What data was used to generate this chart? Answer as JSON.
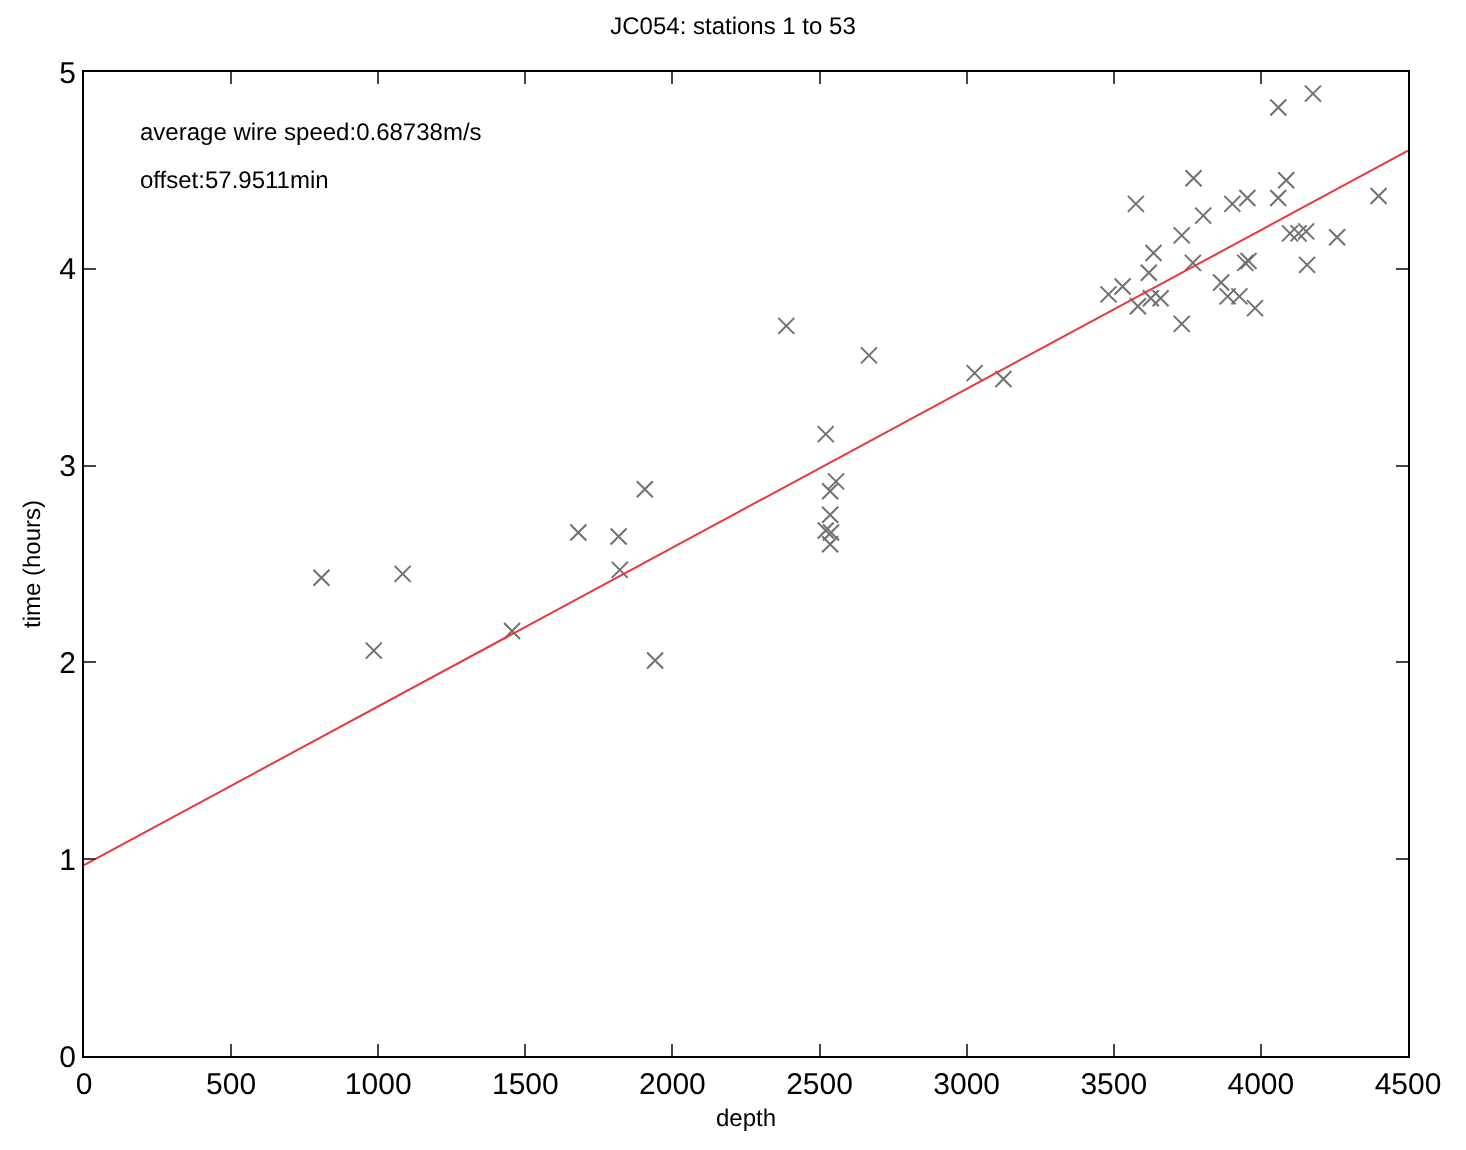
{
  "chart_data": {
    "type": "scatter",
    "title": "JC054: stations 1 to 53",
    "xlabel": "depth",
    "ylabel": "time (hours)",
    "xlim": [
      0,
      4500
    ],
    "ylim": [
      0,
      5
    ],
    "xticks": [
      0,
      500,
      1000,
      1500,
      2000,
      2500,
      3000,
      3500,
      4000,
      4500
    ],
    "yticks": [
      0,
      1,
      2,
      3,
      4,
      5
    ],
    "legend": false,
    "annotations": [
      "average wire speed:0.68738m/s",
      "offset:57.9511min"
    ],
    "series": [
      {
        "marker": "cross",
        "color": "#707070",
        "x": [
          807,
          985,
          1083,
          1455,
          1680,
          1817,
          1821,
          1906,
          1941,
          2387,
          2521,
          2556,
          2536,
          2536,
          2521,
          2539,
          2536,
          2668,
          3027,
          3125,
          3482,
          3530,
          3575,
          3582,
          3619,
          3635,
          3626,
          3659,
          3731,
          3731,
          3769,
          3771,
          3804,
          3865,
          3887,
          3903,
          3927,
          3954,
          3947,
          3958,
          3980,
          4059,
          4059,
          4086,
          4099,
          4128,
          4154,
          4157,
          4177,
          4259,
          4400
        ],
        "values": [
          2.43,
          2.06,
          2.45,
          2.16,
          2.66,
          2.64,
          2.47,
          2.88,
          2.01,
          3.71,
          3.16,
          2.92,
          2.87,
          2.75,
          2.67,
          2.66,
          2.6,
          3.56,
          3.47,
          3.44,
          3.87,
          3.91,
          4.33,
          3.81,
          3.98,
          4.08,
          3.85,
          3.85,
          4.17,
          3.72,
          4.03,
          4.46,
          4.27,
          3.93,
          3.86,
          4.33,
          3.86,
          4.36,
          4.03,
          4.04,
          3.8,
          4.82,
          4.36,
          4.45,
          4.18,
          4.18,
          4.19,
          4.02,
          4.89,
          4.16,
          4.37
        ]
      },
      {
        "type": "line",
        "marker": "none",
        "color": "#e8383d",
        "x": [
          0,
          4500
        ],
        "values": [
          0.97,
          4.6
        ]
      }
    ]
  }
}
